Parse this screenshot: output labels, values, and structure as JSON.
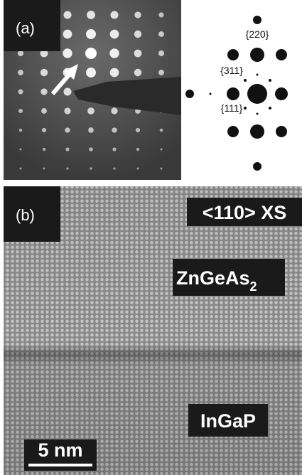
{
  "panel_a": {
    "label": "(a)",
    "spots": {
      "top": "{220}",
      "middle": "{311}",
      "bottom": "{111}"
    }
  },
  "panel_b": {
    "label": "(b)",
    "orientation": "<110> XS",
    "film": {
      "text": "ZnGeAs",
      "subscript": "2"
    },
    "substrate": "InGaP",
    "scale_bar": "5 nm"
  }
}
